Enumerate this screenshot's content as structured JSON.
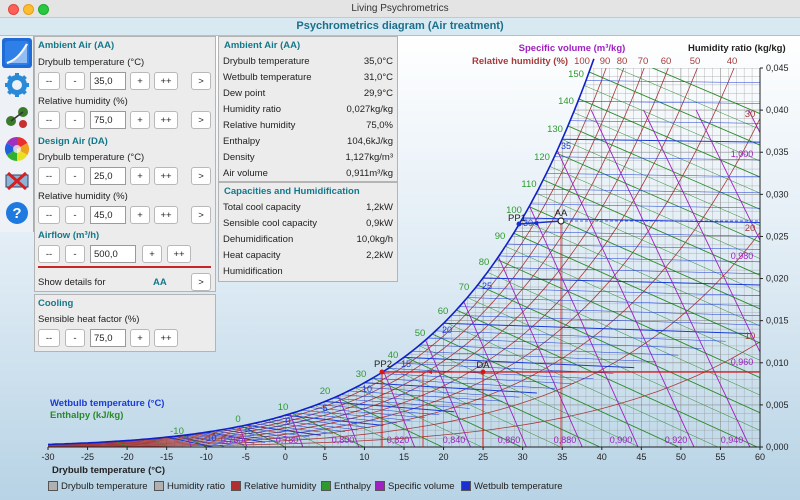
{
  "window": {
    "title": "Living Psychrometrics"
  },
  "header": {
    "title": "Psychrometrics diagram (Air treatment)"
  },
  "sidebar": {
    "items": [
      {
        "name": "chart",
        "icon": "chart-curve-icon"
      },
      {
        "name": "settings",
        "icon": "gear-icon"
      },
      {
        "name": "processes",
        "icon": "process-icon"
      },
      {
        "name": "colors",
        "icon": "color-wheel-icon"
      },
      {
        "name": "swap",
        "icon": "swap-icon"
      },
      {
        "name": "help",
        "icon": "question-icon"
      }
    ]
  },
  "left": {
    "ambient_title": "Ambient Air (AA)",
    "aa_db_label": "Drybulb temperature (°C)",
    "aa_db_value": "35,0",
    "aa_rh_label": "Relative humidity (%)",
    "aa_rh_value": "75,0",
    "design_title": "Design Air (DA)",
    "da_db_label": "Drybulb temperature (°C)",
    "da_db_value": "25,0",
    "da_rh_label": "Relative humidity (%)",
    "da_rh_value": "45,0",
    "airflow_title": "Airflow (m³/h)",
    "airflow_value": "500,0",
    "details_label": "Show details for",
    "details_value": "AA",
    "cooling_title": "Cooling",
    "shf_label": "Sensible heat factor (%)",
    "shf_value": "75,0",
    "btn_mm": "--",
    "btn_m": "-",
    "btn_p": "+",
    "btn_pp": "++",
    "btn_go": ">"
  },
  "info": {
    "title": "Ambient Air (AA)",
    "rows": [
      {
        "k": "Drybulb temperature",
        "v": "35,0°C"
      },
      {
        "k": "Wetbulb temperature",
        "v": "31,0°C"
      },
      {
        "k": "Dew point",
        "v": "29,9°C"
      },
      {
        "k": "Humidity ratio",
        "v": "0,027kg/kg"
      },
      {
        "k": "Relative humidity",
        "v": "75,0%"
      },
      {
        "k": "Enthalpy",
        "v": "104,6kJ/kg"
      },
      {
        "k": "Density",
        "v": "1,127kg/m³"
      },
      {
        "k": "Air volume",
        "v": "0,911m³/kg"
      }
    ],
    "cap_title": "Capacities and Humidification",
    "cap_rows": [
      {
        "k": "Total cool capacity",
        "v": "1,2kW"
      },
      {
        "k": "Sensible cool capacity",
        "v": "0,9kW"
      },
      {
        "k": "Dehumidification",
        "v": "10,0kg/h"
      },
      {
        "k": "Heat capacity",
        "v": "2,2kW"
      },
      {
        "k": "Humidification",
        "v": ""
      }
    ]
  },
  "chart": {
    "specific_volume_title": "Specific volume (m³/kg)",
    "humidity_ratio_title": "Humidity ratio (kg/kg)",
    "relative_humidity_title": "Relative humidity (%)",
    "wetbulb_title": "Wetbulb temperature (°C)",
    "enthalpy_title": "Enthalpy (kJ/kg)",
    "drybulb_title": "Drybulb temperature (°C)",
    "rh_top_labels": [
      "100",
      "90",
      "80",
      "70",
      "60",
      "50",
      "40"
    ],
    "x_ticks": [
      "-30",
      "-25",
      "-20",
      "-15",
      "-10",
      "-5",
      "0",
      "5",
      "10",
      "15",
      "20",
      "25",
      "30",
      "35",
      "40",
      "45",
      "50",
      "55",
      "60"
    ],
    "y_ticks": [
      "0,045",
      "0,040",
      "0,035",
      "0,030",
      "0,025",
      "0,020",
      "0,015",
      "0,010",
      "0,005",
      "0,000"
    ],
    "enthalpy_labels": [
      "150",
      "140",
      "130",
      "120",
      "110",
      "100",
      "90",
      "80",
      "70",
      "60",
      "50",
      "40",
      "30",
      "20",
      "10",
      "0",
      "-10"
    ],
    "wetbulb_labels": [
      "35",
      "30",
      "25",
      "20",
      "15",
      "10",
      "5",
      "0",
      "-5",
      "-10"
    ],
    "volume_labels": [
      "0,760",
      "0,780",
      "0,800",
      "0,820",
      "0,840",
      "0,860",
      "0,880",
      "0,900",
      "0,920",
      "0,940",
      "0,960",
      "0,980",
      "1,000"
    ],
    "right_rh_labels": [
      "30",
      "20",
      "10"
    ],
    "points": {
      "aa": "AA",
      "pp1": "PP1",
      "pp2": "PP2",
      "da": "DA"
    },
    "colors": {
      "rh": "#a83a3a",
      "enthalpy": "#2a8a2a",
      "volume": "#a020c0",
      "wetbulb": "#1a3ad8",
      "grid": "#8c8c8c",
      "process": "#d41818"
    }
  },
  "legend": [
    {
      "label": "Drybulb temperature",
      "color": "#b0b0b0"
    },
    {
      "label": "Humidity ratio",
      "color": "#b0b0b0"
    },
    {
      "label": "Relative humidity",
      "color": "#b03030"
    },
    {
      "label": "Enthalpy",
      "color": "#2e9a2e"
    },
    {
      "label": "Specific volume",
      "color": "#a020c0"
    },
    {
      "label": "Wetbulb temperature",
      "color": "#1a2fd0"
    }
  ]
}
